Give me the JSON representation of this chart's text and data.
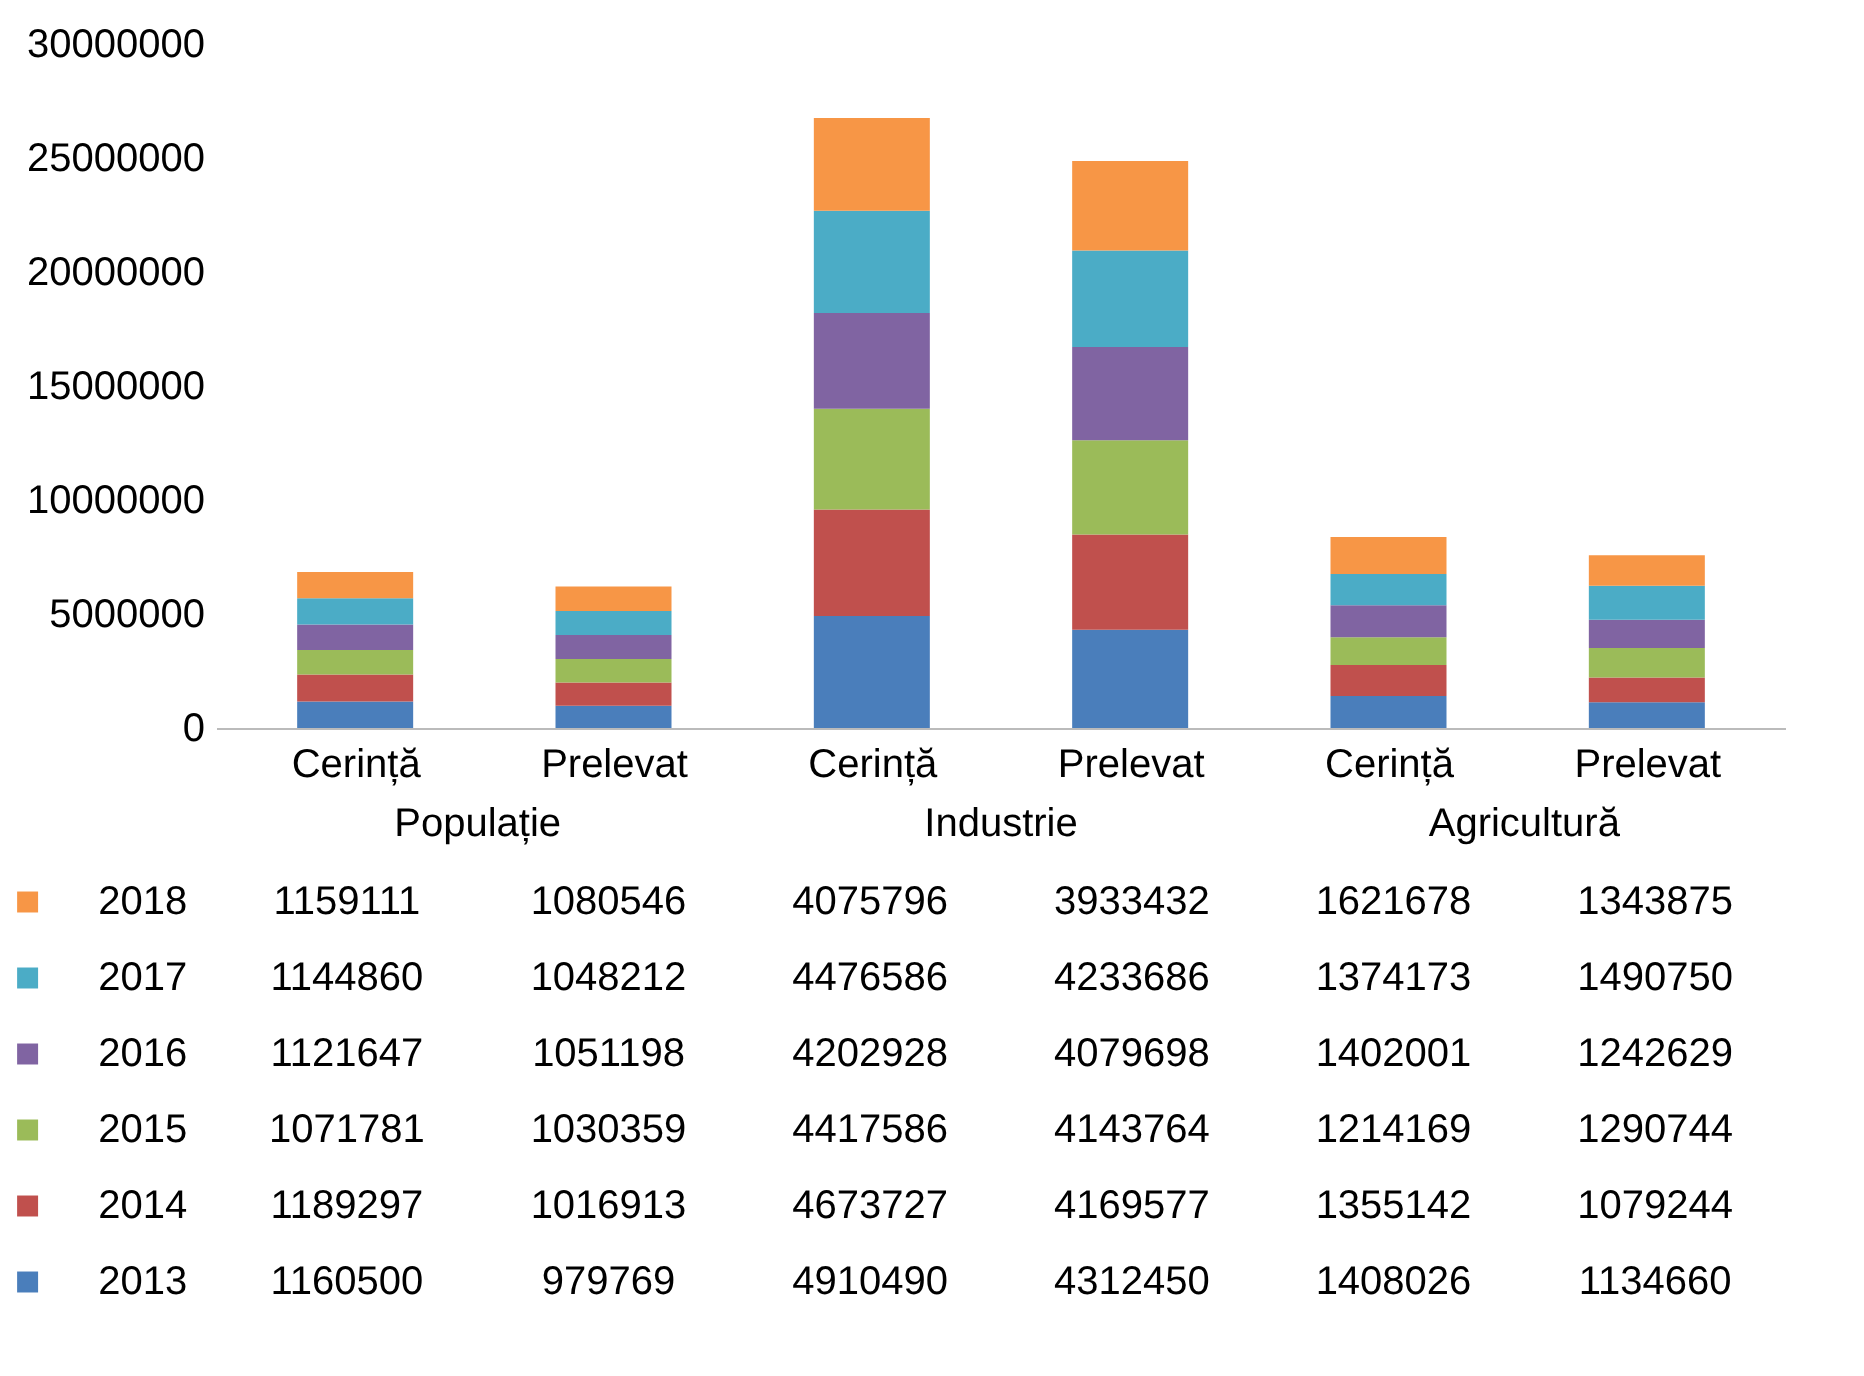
{
  "chart_data": {
    "type": "bar",
    "stacked": true,
    "categories": [
      "Cerință",
      "Prelevat",
      "Cerință",
      "Prelevat",
      "Cerință",
      "Prelevat"
    ],
    "annotations": [
      "Populație",
      "Industrie",
      "Agricultură"
    ],
    "ylim": [
      0,
      30000000
    ],
    "yticks": [
      0,
      5000000,
      10000000,
      15000000,
      20000000,
      25000000,
      30000000
    ],
    "data_labels": true,
    "legend": "bottom",
    "series": [
      {
        "name": "2013",
        "color": "#4a7ebb",
        "values": [
          1160500,
          979769,
          4910490,
          4312450,
          1408026,
          1134660
        ]
      },
      {
        "name": "2014",
        "color": "#c0504d",
        "values": [
          1189297,
          1016913,
          4673727,
          4169577,
          1355142,
          1079244
        ]
      },
      {
        "name": "2015",
        "color": "#9bbb59",
        "values": [
          1071781,
          1030359,
          4417586,
          4143764,
          1214169,
          1290744
        ]
      },
      {
        "name": "2016",
        "color": "#8064a2",
        "values": [
          1121647,
          1051198,
          4202928,
          4079698,
          1402001,
          1242629
        ]
      },
      {
        "name": "2017",
        "color": "#4bacc6",
        "values": [
          1144860,
          1048212,
          4476586,
          4233686,
          1374173,
          1490750
        ]
      },
      {
        "name": "2018",
        "color": "#f79646",
        "values": [
          1159111,
          1080546,
          4075796,
          3933432,
          1621678,
          1343875
        ]
      }
    ]
  }
}
